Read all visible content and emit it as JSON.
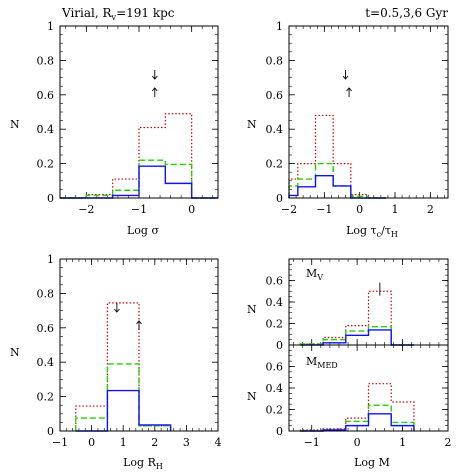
{
  "header": {
    "left_text": "Virial,  R",
    "left_sub": "v",
    "left_tail": "=191 kpc",
    "right_text": "t=0.5,3,6 Gyr"
  },
  "colors": {
    "red": "#d40000",
    "green": "#1fd400",
    "blue": "#1010ff"
  },
  "chart_data": [
    {
      "id": "tl",
      "type": "histogram",
      "xlabel": "Log σ",
      "ylabel": "N",
      "xlim": [
        -2.5,
        0.5
      ],
      "ylim": [
        0,
        1
      ],
      "xticks": [
        -2,
        -1,
        0
      ],
      "yticks": [
        0,
        0.2,
        0.4,
        0.6,
        0.8,
        1
      ],
      "bins": [
        -2.5,
        -2.0,
        -1.5,
        -1.0,
        -0.5,
        0.0,
        0.5
      ],
      "series": [
        {
          "color": "red",
          "style": "dotted",
          "values": [
            0,
            0.02,
            0.11,
            0.41,
            0.49,
            0
          ]
        },
        {
          "color": "green",
          "style": "dashed",
          "values": [
            0,
            0.015,
            0.045,
            0.22,
            0.195,
            0
          ]
        },
        {
          "color": "blue",
          "style": "solid",
          "values": [
            0,
            0,
            0.015,
            0.185,
            0.085,
            0
          ]
        }
      ],
      "arrows": [
        {
          "x": -0.7,
          "dir": "down"
        },
        {
          "x": -0.7,
          "dir": "up"
        }
      ]
    },
    {
      "id": "tr",
      "type": "histogram",
      "xlabel": "Log τ",
      "xlabel_sub": "c",
      "xlabel_mid": "/τ",
      "xlabel_sub2": "H",
      "ylabel": "N",
      "xlim": [
        -2,
        2.5
      ],
      "ylim": [
        0,
        1
      ],
      "xticks": [
        -2,
        -1,
        0,
        1,
        2
      ],
      "yticks": [
        0,
        0.2,
        0.4,
        0.6,
        0.8,
        1
      ],
      "bins": [
        -2.0,
        -1.75,
        -1.25,
        -0.75,
        -0.25,
        0.25,
        0.75
      ],
      "series": [
        {
          "color": "red",
          "style": "dotted",
          "values": [
            0.11,
            0.2,
            0.48,
            0.2,
            0.02,
            0
          ]
        },
        {
          "color": "green",
          "style": "dashed",
          "values": [
            0.07,
            0.11,
            0.2,
            0.07,
            0.01,
            0
          ]
        },
        {
          "color": "blue",
          "style": "solid",
          "values": [
            0.015,
            0.065,
            0.13,
            0.07,
            0,
            0
          ]
        }
      ],
      "arrows": [
        {
          "x": -0.4,
          "dir": "down"
        },
        {
          "x": -0.3,
          "dir": "up"
        }
      ]
    },
    {
      "id": "bl",
      "type": "histogram",
      "xlabel": "Log R",
      "xlabel_sub": "H",
      "ylabel": "N",
      "xlim": [
        -1,
        4
      ],
      "ylim": [
        0,
        1
      ],
      "xticks": [
        -1,
        0,
        1,
        2,
        3,
        4
      ],
      "yticks": [
        0,
        0.2,
        0.4,
        0.6,
        0.8,
        1
      ],
      "bins": [
        -0.5,
        0.5,
        1.5,
        2.5
      ],
      "series": [
        {
          "color": "red",
          "style": "dotted",
          "values": [
            0.145,
            0.745,
            0.03
          ]
        },
        {
          "color": "green",
          "style": "dashed",
          "values": [
            0.075,
            0.39,
            0.03
          ]
        },
        {
          "color": "blue",
          "style": "solid",
          "values": [
            0,
            0.235,
            0.035
          ]
        }
      ],
      "arrows": [
        {
          "x": 0.8,
          "dir": "down"
        },
        {
          "x": 1.5,
          "dir": "up"
        }
      ]
    },
    {
      "id": "br1",
      "type": "histogram",
      "label": "M",
      "label_sub": "V",
      "ylabel": "N",
      "xlim": [
        -1.5,
        2
      ],
      "ylim": [
        0,
        0.8
      ],
      "xticks": [
        -1,
        0,
        1,
        2
      ],
      "yticks": [
        0,
        0.2,
        0.4,
        0.6
      ],
      "bins": [
        -1.25,
        -0.75,
        -0.25,
        0.25,
        0.75,
        1.25
      ],
      "series": [
        {
          "color": "red",
          "style": "dotted",
          "values": [
            0.01,
            0.07,
            0.18,
            0.5,
            0
          ]
        },
        {
          "color": "green",
          "style": "dashed",
          "values": [
            0.01,
            0.05,
            0.13,
            0.17,
            0
          ]
        },
        {
          "color": "blue",
          "style": "solid",
          "values": [
            0,
            0.02,
            0.09,
            0.14,
            0
          ]
        }
      ],
      "vline": 0.5
    },
    {
      "id": "br2",
      "type": "histogram",
      "label": "M",
      "label_sub": "MED",
      "xlabel": "Log M",
      "ylabel": "N",
      "xlim": [
        -1.5,
        2
      ],
      "ylim": [
        0,
        0.8
      ],
      "xticks": [
        -1,
        0,
        1,
        2
      ],
      "yticks": [
        0,
        0.2,
        0.4,
        0.6
      ],
      "bins": [
        -1.25,
        -0.75,
        -0.25,
        0.25,
        0.75,
        1.25
      ],
      "series": [
        {
          "color": "red",
          "style": "dotted",
          "values": [
            0.01,
            0.02,
            0.12,
            0.44,
            0.27
          ]
        },
        {
          "color": "green",
          "style": "dashed",
          "values": [
            0,
            0.01,
            0.09,
            0.24,
            0.08
          ]
        },
        {
          "color": "blue",
          "style": "solid",
          "values": [
            0,
            0.01,
            0.05,
            0.16,
            0.05
          ]
        }
      ]
    }
  ]
}
